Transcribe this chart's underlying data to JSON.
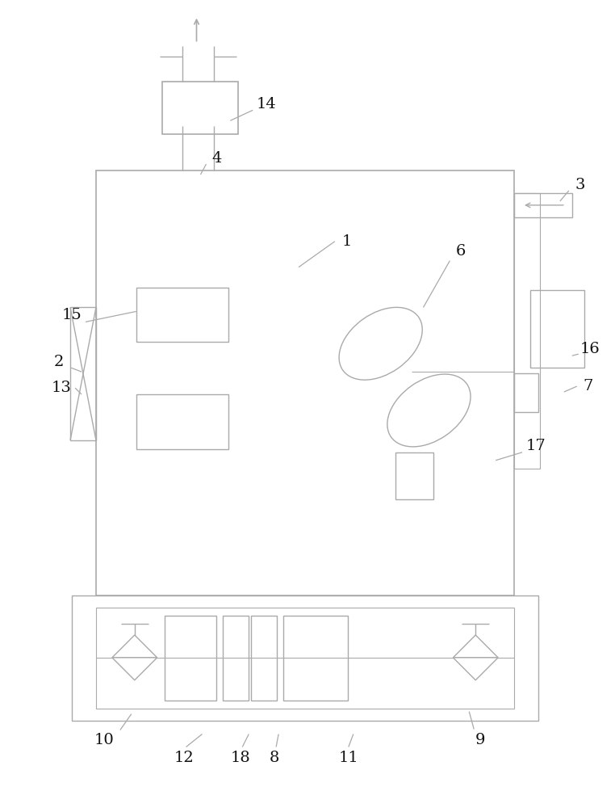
{
  "bg_color": "#ffffff",
  "line_color": "#aaaaaa",
  "line_width": 1.0,
  "label_color": "#111111",
  "fig_width": 7.62,
  "fig_height": 10.0
}
